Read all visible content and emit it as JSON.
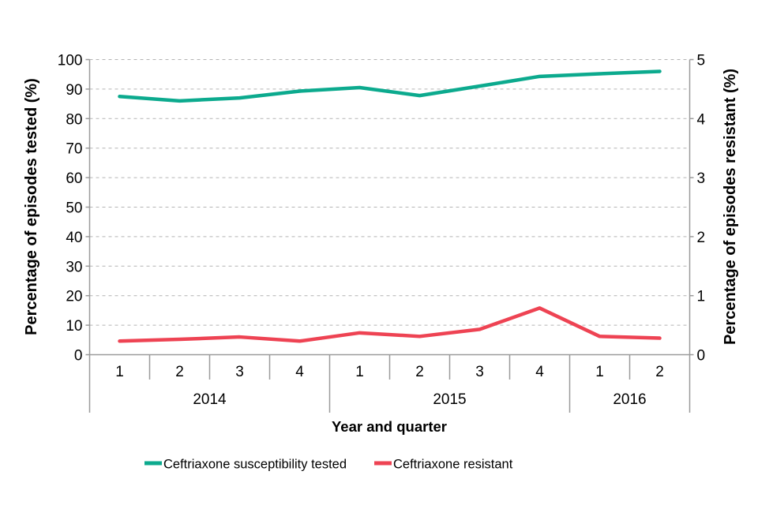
{
  "chart_data": {
    "type": "line",
    "title": "",
    "xlabel": "Year and quarter",
    "ylabel_left": "Percentage of episodes tested (%)",
    "ylabel_right": "Percentage of episodes resistant (%)",
    "x_quarters": [
      "1",
      "2",
      "3",
      "4",
      "1",
      "2",
      "3",
      "4",
      "1",
      "2"
    ],
    "years": [
      {
        "label": "2014",
        "quarters": 4
      },
      {
        "label": "2015",
        "quarters": 4
      },
      {
        "label": "2016",
        "quarters": 2
      }
    ],
    "axis_left": {
      "min": 0,
      "max": 100,
      "ticks": [
        0,
        10,
        20,
        30,
        40,
        50,
        60,
        70,
        80,
        90,
        100
      ]
    },
    "axis_right": {
      "min": 0,
      "max": 5,
      "ticks": [
        0,
        1,
        2,
        3,
        4,
        5
      ]
    },
    "grid": "horizontal-dashed",
    "legend_position": "bottom",
    "series": [
      {
        "name": "Ceftriaxone susceptibility tested",
        "axis": "left",
        "color": "#0caa8e",
        "values": [
          87.5,
          86.0,
          87.0,
          89.3,
          90.5,
          87.8,
          91.0,
          94.3,
          95.2,
          96.0
        ]
      },
      {
        "name": "Ceftriaxone resistant",
        "axis": "right",
        "color": "#ee4353",
        "values": [
          0.23,
          0.26,
          0.3,
          0.23,
          0.37,
          0.31,
          0.43,
          0.79,
          0.31,
          0.28
        ]
      }
    ]
  },
  "colors": {
    "background": "#ffffff",
    "grid": "#b4b4b4",
    "axis": "#9b9b9b",
    "text": "#000000"
  }
}
